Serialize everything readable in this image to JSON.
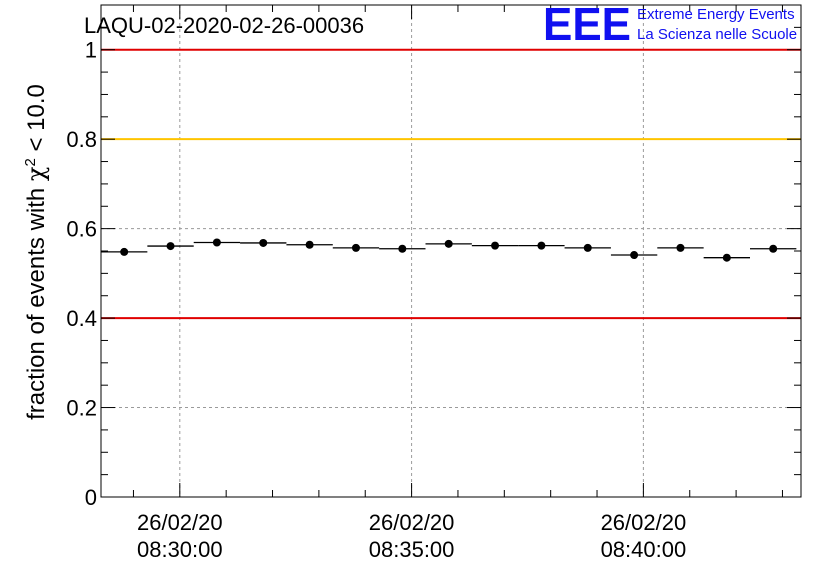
{
  "chart_data": {
    "type": "scatter",
    "title": "LAQU-02-2020-02-26-00036",
    "ylabel_prefix": "fraction of events with ",
    "ylabel_symbol": "χ",
    "ylabel_sup": "2",
    "ylabel_suffix": " < 10.0",
    "xlabel": "",
    "ylim": [
      0,
      1.1
    ],
    "yticks": [
      0,
      0.2,
      0.4,
      0.6,
      0.8,
      1
    ],
    "ytick_labels": [
      "0",
      "0.2",
      "0.4",
      "0.6",
      "0.8",
      "1"
    ],
    "x_unit": "minutes since 08:30:00",
    "xlim": [
      -1.7,
      13.4
    ],
    "xticks": [
      0,
      5,
      10
    ],
    "xtick_labels": [
      {
        "date": "26/02/20",
        "time": "08:30:00"
      },
      {
        "date": "26/02/20",
        "time": "08:35:00"
      },
      {
        "date": "26/02/20",
        "time": "08:40:00"
      }
    ],
    "bin_width": 1.0,
    "points": {
      "x": [
        -1.2,
        -0.2,
        0.8,
        1.8,
        2.8,
        3.8,
        4.8,
        5.8,
        6.8,
        7.8,
        8.8,
        9.8,
        10.8,
        11.8,
        12.8
      ],
      "y": [
        0.548,
        0.561,
        0.569,
        0.568,
        0.564,
        0.557,
        0.555,
        0.566,
        0.562,
        0.562,
        0.557,
        0.541,
        0.557,
        0.535,
        0.555
      ]
    },
    "reference_lines": [
      {
        "value": 1.0,
        "color": "#e00000"
      },
      {
        "value": 0.8,
        "color": "#ffc400"
      },
      {
        "value": 0.4,
        "color": "#e00000"
      }
    ],
    "grid": true
  },
  "logo": {
    "mark": "EEE",
    "line1": "Extreme Energy Events",
    "line2": "La Scienza nelle Scuole",
    "color": "#1010f0"
  }
}
